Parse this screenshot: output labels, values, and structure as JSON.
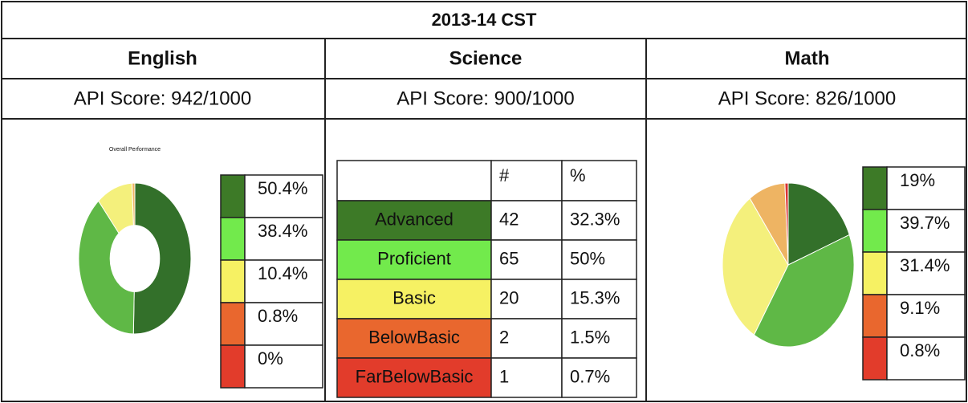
{
  "title": "2013-14 CST",
  "level_colors": [
    "#3d7a27",
    "#72ea4c",
    "#f6f163",
    "#e9672e",
    "#e23c2b"
  ],
  "subjects": [
    {
      "name": "English",
      "api": "API Score: 942/1000",
      "chart": {
        "type": "donut",
        "title": "Overall Performance",
        "values": [
          50.4,
          38.4,
          10.4,
          0.8,
          0
        ],
        "value_labels": [
          "50.4%",
          "38.4%",
          "10.4%",
          "0.8%",
          "0%"
        ],
        "colors": [
          "#33702a",
          "#5fb846",
          "#f4f07c",
          "#eeb463",
          "#d83434"
        ]
      }
    },
    {
      "name": "Science",
      "api": "API Score: 900/1000",
      "table": {
        "header": [
          "#",
          "%"
        ],
        "rows": [
          [
            "Advanced",
            "42",
            "32.3%"
          ],
          [
            "Proficient",
            "65",
            "50%"
          ],
          [
            "Basic",
            "20",
            "15.3%"
          ],
          [
            "BelowBasic",
            "2",
            "1.5%"
          ],
          [
            "FarBelowBasic",
            "1",
            "0.7%"
          ]
        ]
      }
    },
    {
      "name": "Math",
      "api": "API Score: 826/1000",
      "chart": {
        "type": "pie",
        "values": [
          19,
          39.7,
          31.4,
          9.1,
          0.8
        ],
        "value_labels": [
          "19%",
          "39.7%",
          "31.4%",
          "9.1%",
          "0.8%"
        ],
        "colors": [
          "#33702a",
          "#5fb846",
          "#f4f07c",
          "#eeb463",
          "#d83434"
        ]
      }
    }
  ]
}
